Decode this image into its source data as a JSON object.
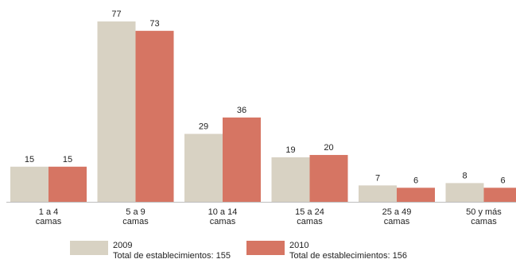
{
  "chart_data": {
    "type": "bar",
    "categories": [
      [
        "1 a 4",
        "camas"
      ],
      [
        "5 a 9",
        "camas"
      ],
      [
        "10 a 14",
        "camas"
      ],
      [
        "15 a 24",
        "camas"
      ],
      [
        "25 a 49",
        "camas"
      ],
      [
        "50 y más",
        "camas"
      ]
    ],
    "series": [
      {
        "name": "2009",
        "values": [
          15,
          77,
          29,
          19,
          7,
          8
        ],
        "color": "#d8d2c3",
        "note": "Total de establecimientos: 155"
      },
      {
        "name": "2010",
        "values": [
          15,
          73,
          36,
          20,
          6,
          6
        ],
        "color": "#d67563",
        "note": "Total de establecimientos: 156"
      }
    ],
    "ylim": [
      0,
      77
    ],
    "grid": false,
    "legend_position": "bottom"
  },
  "legend": {
    "items": [
      {
        "label": "2009",
        "note": "Total de establecimientos: 155"
      },
      {
        "label": "2010",
        "note": "Total de establecimientos: 156"
      }
    ]
  }
}
